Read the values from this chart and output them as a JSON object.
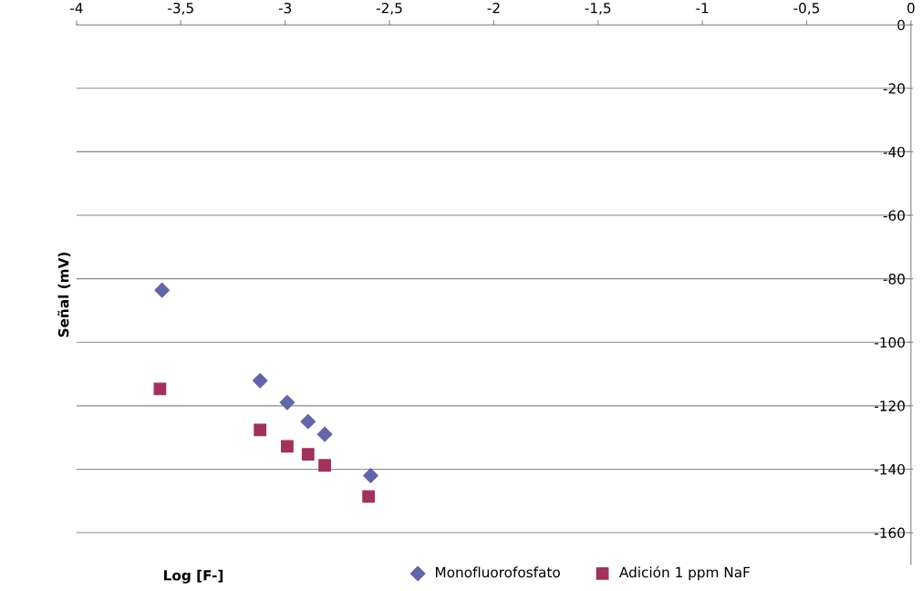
{
  "chart_data": {
    "type": "scatter",
    "xlabel": "Log [F-]",
    "ylabel": "Señal (mV)",
    "xlim": [
      -4,
      0
    ],
    "xticks": [
      {
        "value": -4,
        "label": "-4"
      },
      {
        "value": -3.5,
        "label": "-3,5"
      },
      {
        "value": -3,
        "label": "-3"
      },
      {
        "value": -2.5,
        "label": "-2,5"
      },
      {
        "value": -2,
        "label": "-2"
      },
      {
        "value": -1.5,
        "label": "-1,5"
      },
      {
        "value": -1,
        "label": "-1"
      },
      {
        "value": -0.5,
        "label": "-0,5"
      },
      {
        "value": 0,
        "label": "0"
      }
    ],
    "ylim": [
      -170,
      0
    ],
    "yticks": [
      -160,
      -140,
      -120,
      -100,
      -80,
      -60,
      -40,
      -20,
      0
    ],
    "grid": "y",
    "legend": "bottom",
    "series": [
      {
        "name": "Monofluorofosfato",
        "color": "#6464a8",
        "marker": "diamond",
        "x": [
          -3.59,
          -3.12,
          -2.99,
          -2.89,
          -2.81,
          -2.59
        ],
        "values": [
          -83.6,
          -112.1,
          -119.0,
          -125.0,
          -129.0,
          -142.0
        ]
      },
      {
        "name": "Adición 1 ppm NaF",
        "color": "#a0325e",
        "marker": "square",
        "x": [
          -3.6,
          -3.12,
          -2.99,
          -2.89,
          -2.81,
          -2.6
        ],
        "values": [
          -114.7,
          -127.6,
          -132.8,
          -135.3,
          -138.8,
          -148.6
        ]
      }
    ]
  }
}
